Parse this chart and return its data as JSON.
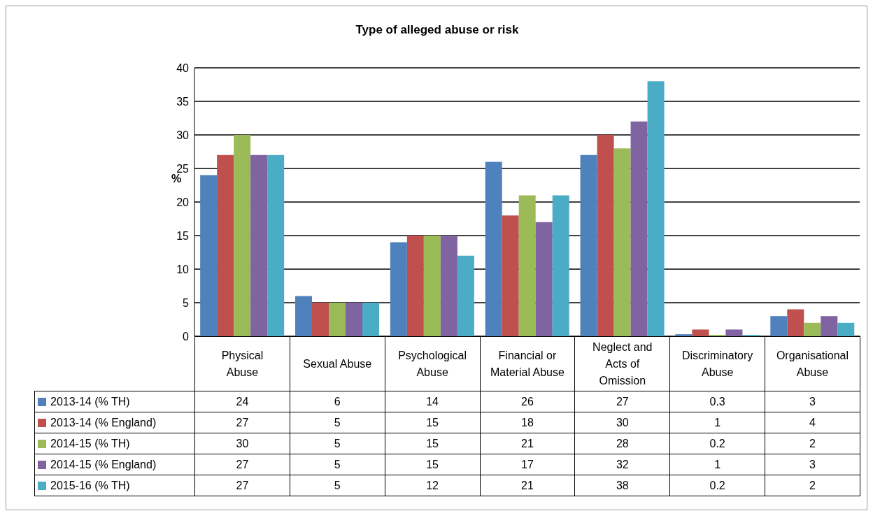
{
  "chart_data": {
    "type": "bar",
    "title": "Type of alleged abuse or risk",
    "ylabel": "%",
    "categories": [
      "Physical Abuse",
      "Sexual Abuse",
      "Psychological Abuse",
      "Financial or Material Abuse",
      "Neglect and Acts of Omission",
      "Discriminatory Abuse",
      "Organisational Abuse"
    ],
    "series": [
      {
        "name": "2013-14 (% TH)",
        "color": "#4f81bd",
        "values": [
          24,
          6,
          14,
          26,
          27,
          0.3,
          3
        ]
      },
      {
        "name": "2013-14 (% England)",
        "color": "#c0504d",
        "values": [
          27,
          5,
          15,
          18,
          30,
          1,
          4
        ]
      },
      {
        "name": "2014-15 (% TH)",
        "color": "#9bbb59",
        "values": [
          30,
          5,
          15,
          21,
          28,
          0.2,
          2
        ]
      },
      {
        "name": "2014-15 (% England)",
        "color": "#8064a2",
        "values": [
          27,
          5,
          15,
          17,
          32,
          1,
          3
        ]
      },
      {
        "name": "2015-16 (% TH)",
        "color": "#4bacc6",
        "values": [
          27,
          5,
          12,
          21,
          38,
          0.2,
          2
        ]
      }
    ],
    "ylim": [
      0,
      40
    ],
    "yticks": [
      0,
      5,
      10,
      15,
      20,
      25,
      30,
      35,
      40
    ],
    "grid": "y",
    "legend": "bottom",
    "data_labels": true
  }
}
